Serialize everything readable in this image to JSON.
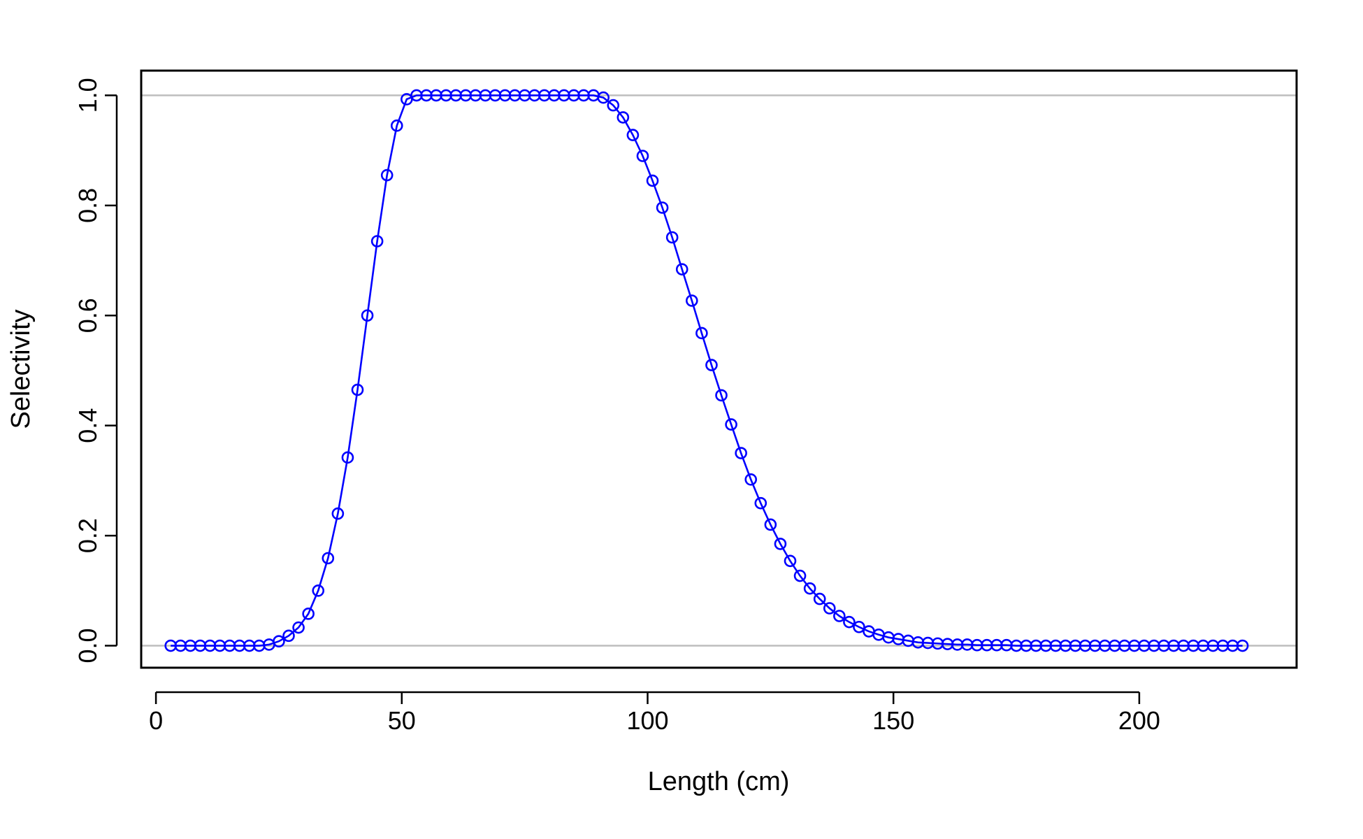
{
  "chart_data": {
    "type": "line",
    "title": "",
    "xlabel": "Length (cm)",
    "ylabel": "Selectivity",
    "xlim": [
      -3,
      232
    ],
    "ylim": [
      -0.04,
      1.045
    ],
    "x_ticks": [
      0,
      50,
      100,
      150,
      200
    ],
    "x_tick_labels": [
      "0",
      "50",
      "100",
      "150",
      "200"
    ],
    "y_ticks": [
      0.0,
      0.2,
      0.4,
      0.6,
      0.8,
      1.0
    ],
    "y_tick_labels": [
      "0.0",
      "0.2",
      "0.4",
      "0.6",
      "0.8",
      "1.0"
    ],
    "reference_lines_y": [
      0,
      1
    ],
    "grid": false,
    "series": [
      {
        "marker": "open-circle",
        "line": true,
        "x": [
          3,
          5,
          7,
          9,
          11,
          13,
          15,
          17,
          19,
          21,
          23,
          25,
          27,
          29,
          31,
          33,
          35,
          37,
          39,
          41,
          43,
          45,
          47,
          49,
          51,
          53,
          55,
          57,
          59,
          61,
          63,
          65,
          67,
          69,
          71,
          73,
          75,
          77,
          79,
          81,
          83,
          85,
          87,
          89,
          91,
          93,
          95,
          97,
          99,
          101,
          103,
          105,
          107,
          109,
          111,
          113,
          115,
          117,
          119,
          121,
          123,
          125,
          127,
          129,
          131,
          133,
          135,
          137,
          139,
          141,
          143,
          145,
          147,
          149,
          151,
          153,
          155,
          157,
          159,
          161,
          163,
          165,
          167,
          169,
          171,
          173,
          175,
          177,
          179,
          181,
          183,
          185,
          187,
          189,
          191,
          193,
          195,
          197,
          199,
          201,
          203,
          205,
          207,
          209,
          211,
          213,
          215,
          217,
          219,
          221
        ],
        "y": [
          0,
          0,
          0,
          0,
          0,
          0,
          0,
          0,
          0,
          0,
          0.002,
          0.008,
          0.018,
          0.033,
          0.058,
          0.1,
          0.159,
          0.24,
          0.342,
          0.465,
          0.6,
          0.735,
          0.855,
          0.945,
          0.993,
          1,
          1,
          1,
          1,
          1,
          1,
          1,
          1,
          1,
          1,
          1,
          1,
          1,
          1,
          1,
          1,
          1,
          1,
          1,
          0.996,
          0.982,
          0.96,
          0.928,
          0.89,
          0.845,
          0.796,
          0.742,
          0.684,
          0.627,
          0.568,
          0.51,
          0.455,
          0.402,
          0.35,
          0.302,
          0.259,
          0.22,
          0.185,
          0.154,
          0.127,
          0.104,
          0.085,
          0.068,
          0.054,
          0.043,
          0.034,
          0.026,
          0.02,
          0.015,
          0.012,
          0.009,
          0.006,
          0.005,
          0.004,
          0.003,
          0.002,
          0.002,
          0.001,
          0.001,
          0.001,
          0.001,
          0,
          0,
          0,
          0,
          0,
          0,
          0,
          0,
          0,
          0,
          0,
          0,
          0,
          0,
          0,
          0,
          0,
          0,
          0,
          0,
          0,
          0,
          0,
          0
        ]
      }
    ]
  },
  "colors": {
    "series": "#0000FF",
    "reference_line": "#BEBEBE",
    "axis": "#000000",
    "background": "#FFFFFF"
  }
}
